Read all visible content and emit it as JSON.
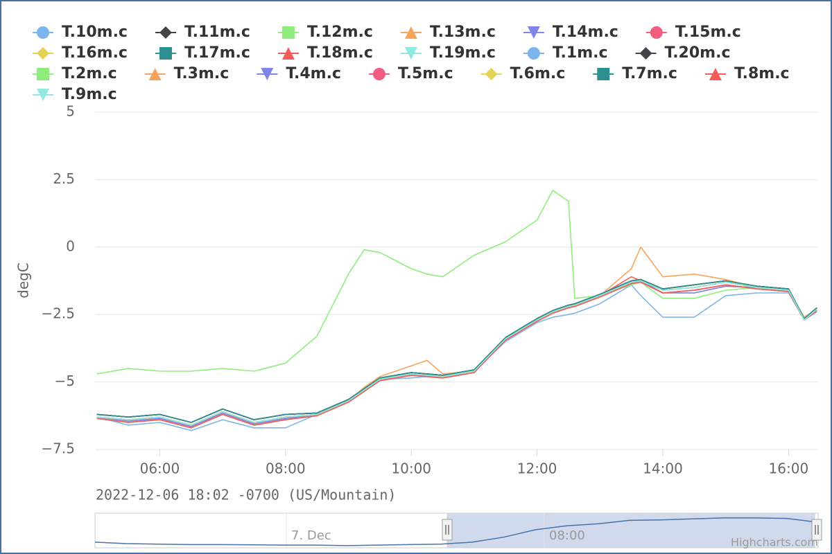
{
  "chart_data": {
    "type": "line",
    "subtitle": "2022-12-06 18:02 -0700 (US/Mountain)",
    "y_label": "degC",
    "x": [
      5,
      5.5,
      6,
      6.5,
      7,
      7.5,
      8,
      8.5,
      9,
      9.25,
      9.5,
      10,
      10.25,
      10.5,
      11,
      11.5,
      12,
      12.25,
      12.5,
      12.6,
      13,
      13.5,
      13.65,
      14,
      14.5,
      15,
      15.5,
      16,
      16.25,
      16.45
    ],
    "xlim": [
      4.97,
      16.47
    ],
    "xticks": [
      {
        "value": 6,
        "label": "06:00"
      },
      {
        "value": 8,
        "label": "08:00"
      },
      {
        "value": 10,
        "label": "10:00"
      },
      {
        "value": 12,
        "label": "12:00"
      },
      {
        "value": 14,
        "label": "14:00"
      },
      {
        "value": 16,
        "label": "16:00"
      }
    ],
    "ylim": [
      -7.5,
      5
    ],
    "yticks": [
      5,
      2.5,
      0,
      {
        "value": -2.5,
        "label": "−2.5"
      },
      {
        "value": -5,
        "label": "−5"
      },
      {
        "value": -7.5,
        "label": "−7.5"
      }
    ],
    "grid": true,
    "series": [
      {
        "name": "T.10m.c",
        "color": "#7cb5ec",
        "symbol": "circle",
        "values": [
          -6.3,
          -6.4,
          -6.3,
          -6.6,
          -6.1,
          -6.5,
          -6.3,
          -6.2,
          -5.7,
          -5.3,
          -4.9,
          -4.7,
          -4.75,
          -4.8,
          -4.6,
          -3.4,
          -2.7,
          -2.4,
          -2.2,
          -2.15,
          -1.8,
          -1.3,
          -1.25,
          -1.6,
          -1.5,
          -1.3,
          -1.5,
          -1.6,
          -2.7,
          -2.3
        ]
      },
      {
        "name": "T.11m.c",
        "color": "#434348",
        "symbol": "diamond",
        "values": [
          -6.2,
          -6.3,
          -6.2,
          -6.5,
          -6.0,
          -6.4,
          -6.2,
          -6.15,
          -5.65,
          -5.25,
          -4.85,
          -4.65,
          -4.7,
          -4.75,
          -4.55,
          -3.35,
          -2.65,
          -2.35,
          -2.15,
          -2.1,
          -1.75,
          -1.25,
          -1.2,
          -1.55,
          -1.4,
          -1.25,
          -1.45,
          -1.55,
          -2.65,
          -2.25
        ]
      },
      {
        "name": "T.12m.c",
        "color": "#90ed7d",
        "symbol": "square",
        "values": [
          -6.35,
          -6.5,
          -6.4,
          -6.7,
          -6.2,
          -6.6,
          -6.4,
          -6.25,
          -5.75,
          -5.35,
          -4.95,
          -4.75,
          -4.8,
          -4.85,
          -4.65,
          -3.45,
          -2.75,
          -2.45,
          -2.25,
          -2.2,
          -1.85,
          -1.35,
          -1.3,
          -1.7,
          -1.6,
          -1.4,
          -1.55,
          -1.65,
          -2.7,
          -2.35
        ]
      },
      {
        "name": "T.13m.c",
        "color": "#f7a35c",
        "symbol": "triangle",
        "values": [
          -6.3,
          -6.45,
          -6.35,
          -6.65,
          -6.15,
          -6.55,
          -6.35,
          -6.2,
          -5.7,
          -5.3,
          -4.9,
          -4.7,
          -4.75,
          -4.8,
          -4.6,
          -3.4,
          -2.7,
          -2.4,
          -2.2,
          -2.15,
          -1.8,
          -1.3,
          -1.25,
          -1.7,
          -1.7,
          -1.45,
          -1.5,
          -1.6,
          -2.7,
          -2.3
        ]
      },
      {
        "name": "T.14m.c",
        "color": "#8085e9",
        "symbol": "triangle-down",
        "values": [
          -6.3,
          -6.4,
          -6.3,
          -6.6,
          -6.1,
          -6.5,
          -6.3,
          -6.2,
          -5.7,
          -5.3,
          -4.9,
          -4.7,
          -4.75,
          -4.8,
          -4.6,
          -3.4,
          -2.7,
          -2.4,
          -2.2,
          -2.15,
          -1.8,
          -1.3,
          -1.25,
          -1.6,
          -1.5,
          -1.3,
          -1.5,
          -1.6,
          -2.7,
          -2.3
        ]
      },
      {
        "name": "T.15m.c",
        "color": "#f15c80",
        "symbol": "circle",
        "values": [
          -6.2,
          -6.3,
          -6.2,
          -6.5,
          -6.0,
          -6.4,
          -6.2,
          -6.15,
          -5.65,
          -5.25,
          -4.85,
          -4.65,
          -4.7,
          -4.75,
          -4.55,
          -3.35,
          -2.65,
          -2.35,
          -2.15,
          -2.1,
          -1.75,
          -1.25,
          -1.2,
          -1.55,
          -1.4,
          -1.25,
          -1.45,
          -1.55,
          -2.65,
          -2.25
        ]
      },
      {
        "name": "T.16m.c",
        "color": "#e4d354",
        "symbol": "diamond",
        "values": [
          -6.35,
          -6.5,
          -6.4,
          -6.7,
          -6.2,
          -6.6,
          -6.4,
          -6.25,
          -5.75,
          -5.35,
          -4.95,
          -4.75,
          -4.8,
          -4.85,
          -4.65,
          -3.45,
          -2.75,
          -2.45,
          -2.25,
          -2.2,
          -1.85,
          -1.35,
          -1.3,
          -1.7,
          -1.6,
          -1.4,
          -1.55,
          -1.65,
          -2.7,
          -2.35
        ]
      },
      {
        "name": "T.17m.c",
        "color": "#2b908f",
        "symbol": "square",
        "values": [
          -6.2,
          -6.3,
          -6.2,
          -6.5,
          -6.0,
          -6.4,
          -6.2,
          -6.15,
          -5.65,
          -5.25,
          -4.85,
          -4.65,
          -4.7,
          -4.75,
          -4.55,
          -3.35,
          -2.65,
          -2.35,
          -2.15,
          -2.1,
          -1.75,
          -1.25,
          -1.2,
          -1.55,
          -1.4,
          -1.25,
          -1.45,
          -1.55,
          -2.65,
          -2.25
        ]
      },
      {
        "name": "T.18m.c",
        "color": "#f45b5b",
        "symbol": "triangle",
        "values": [
          -6.3,
          -6.4,
          -6.3,
          -6.6,
          -6.1,
          -6.5,
          -6.3,
          -6.2,
          -5.7,
          -5.3,
          -4.9,
          -4.7,
          -4.75,
          -4.8,
          -4.6,
          -3.4,
          -2.7,
          -2.4,
          -2.2,
          -2.15,
          -1.8,
          -1.1,
          -1.25,
          -1.6,
          -1.5,
          -1.3,
          -1.5,
          -1.6,
          -2.7,
          -2.3
        ]
      },
      {
        "name": "T.19m.c",
        "color": "#91e8e1",
        "symbol": "triangle-down",
        "values": [
          -6.3,
          -6.45,
          -6.35,
          -6.65,
          -6.15,
          -6.55,
          -6.35,
          -6.2,
          -5.7,
          -5.3,
          -4.9,
          -4.7,
          -4.75,
          -4.8,
          -4.6,
          -3.4,
          -2.7,
          -2.4,
          -2.2,
          -2.15,
          -1.8,
          -1.3,
          -1.25,
          -1.7,
          -1.7,
          -1.45,
          -1.5,
          -1.6,
          -2.7,
          -2.3
        ]
      },
      {
        "name": "T.1m.c",
        "color": "#7cb5ec",
        "symbol": "circle",
        "values": [
          -6.3,
          -6.6,
          -6.5,
          -6.8,
          -6.4,
          -6.7,
          -6.7,
          -6.2,
          -5.7,
          -5.3,
          -4.9,
          -4.85,
          -4.8,
          -4.8,
          -4.6,
          -3.5,
          -2.8,
          -2.6,
          -2.5,
          -2.45,
          -2.1,
          -1.4,
          -1.8,
          -2.6,
          -2.6,
          -1.8,
          -1.7,
          -1.7,
          -2.7,
          -2.4
        ]
      },
      {
        "name": "T.20m.c",
        "color": "#434348",
        "symbol": "diamond",
        "values": [
          -6.2,
          -6.3,
          -6.2,
          -6.5,
          -6.0,
          -6.4,
          -6.2,
          -6.15,
          -5.65,
          -5.25,
          -4.85,
          -4.65,
          -4.7,
          -4.75,
          -4.55,
          -3.35,
          -2.65,
          -2.35,
          -2.15,
          -2.1,
          -1.75,
          -1.25,
          -1.2,
          -1.55,
          -1.4,
          -1.25,
          -1.45,
          -1.55,
          -2.65,
          -2.25
        ]
      },
      {
        "name": "T.2m.c",
        "color": "#90ed7d",
        "symbol": "square",
        "values": [
          -4.7,
          -4.5,
          -4.6,
          -4.6,
          -4.5,
          -4.6,
          -4.3,
          -3.3,
          -1.0,
          -0.1,
          -0.2,
          -0.8,
          -1.0,
          -1.1,
          -0.3,
          0.2,
          1.0,
          2.1,
          1.7,
          -1.9,
          -1.8,
          -1.4,
          -1.3,
          -1.9,
          -1.9,
          -1.6,
          -1.5,
          -1.6,
          -2.6,
          -2.3
        ]
      },
      {
        "name": "T.3m.c",
        "color": "#f7a35c",
        "symbol": "triangle",
        "values": [
          -6.3,
          -6.4,
          -6.3,
          -6.6,
          -6.1,
          -6.5,
          -6.3,
          -6.2,
          -5.7,
          -5.2,
          -4.8,
          -4.4,
          -4.2,
          -4.7,
          -4.6,
          -3.4,
          -2.7,
          -2.4,
          -2.2,
          -2.15,
          -1.8,
          -0.8,
          0.0,
          -1.1,
          -1.0,
          -1.2,
          -1.5,
          -1.6,
          -2.6,
          -2.3
        ]
      },
      {
        "name": "T.4m.c",
        "color": "#8085e9",
        "symbol": "triangle-down",
        "values": [
          -6.3,
          -6.45,
          -6.35,
          -6.65,
          -6.15,
          -6.55,
          -6.35,
          -6.2,
          -5.7,
          -5.3,
          -4.9,
          -4.7,
          -4.75,
          -4.8,
          -4.6,
          -3.4,
          -2.7,
          -2.4,
          -2.2,
          -2.15,
          -1.8,
          -1.3,
          -1.25,
          -1.7,
          -1.7,
          -1.45,
          -1.5,
          -1.6,
          -2.7,
          -2.3
        ]
      },
      {
        "name": "T.5m.c",
        "color": "#f15c80",
        "symbol": "circle",
        "values": [
          -6.35,
          -6.5,
          -6.4,
          -6.7,
          -6.2,
          -6.6,
          -6.4,
          -6.25,
          -5.75,
          -5.35,
          -4.95,
          -4.75,
          -4.8,
          -4.85,
          -4.65,
          -3.45,
          -2.75,
          -2.45,
          -2.25,
          -2.2,
          -1.85,
          -1.35,
          -1.3,
          -1.7,
          -1.6,
          -1.4,
          -1.55,
          -1.65,
          -2.7,
          -2.35
        ]
      },
      {
        "name": "T.6m.c",
        "color": "#e4d354",
        "symbol": "diamond",
        "values": [
          -6.3,
          -6.4,
          -6.3,
          -6.6,
          -6.1,
          -6.5,
          -6.3,
          -6.2,
          -5.7,
          -5.3,
          -4.9,
          -4.7,
          -4.75,
          -4.8,
          -4.6,
          -3.4,
          -2.7,
          -2.4,
          -2.2,
          -2.15,
          -1.8,
          -1.3,
          -1.25,
          -1.6,
          -1.5,
          -1.3,
          -1.5,
          -1.6,
          -2.7,
          -2.3
        ]
      },
      {
        "name": "T.7m.c",
        "color": "#2b908f",
        "symbol": "square",
        "values": [
          -6.2,
          -6.3,
          -6.2,
          -6.5,
          -6.0,
          -6.4,
          -6.2,
          -6.15,
          -5.65,
          -5.25,
          -4.85,
          -4.65,
          -4.7,
          -4.75,
          -4.55,
          -3.35,
          -2.65,
          -2.35,
          -2.15,
          -2.1,
          -1.75,
          -1.25,
          -1.2,
          -1.55,
          -1.4,
          -1.25,
          -1.45,
          -1.55,
          -2.65,
          -2.25
        ]
      },
      {
        "name": "T.8m.c",
        "color": "#f45b5b",
        "symbol": "triangle",
        "values": [
          -6.35,
          -6.5,
          -6.4,
          -6.7,
          -6.2,
          -6.6,
          -6.4,
          -6.25,
          -5.75,
          -5.35,
          -4.95,
          -4.75,
          -4.8,
          -4.85,
          -4.65,
          -3.45,
          -2.75,
          -2.45,
          -2.25,
          -2.2,
          -1.85,
          -1.35,
          -1.3,
          -1.7,
          -1.6,
          -1.4,
          -1.55,
          -1.65,
          -2.7,
          -2.35
        ]
      },
      {
        "name": "T.9m.c",
        "color": "#91e8e1",
        "symbol": "triangle-down",
        "values": [
          -6.3,
          -6.4,
          -6.3,
          -6.6,
          -6.1,
          -6.5,
          -6.3,
          -6.2,
          -5.7,
          -5.3,
          -4.9,
          -4.7,
          -4.75,
          -4.8,
          -4.6,
          -3.4,
          -2.7,
          -2.4,
          -2.2,
          -2.15,
          -1.8,
          -1.3,
          -1.25,
          -1.6,
          -1.5,
          -1.3,
          -1.5,
          -1.6,
          -2.7,
          -2.3
        ]
      }
    ],
    "navigator": {
      "labels": [
        "7. Dec",
        "08:00"
      ],
      "color": "#4572a7",
      "ylim": [
        -7.5,
        -1.2
      ],
      "values": [
        -6.5,
        -6.8,
        -6.9,
        -7,
        -7,
        -7.05,
        -7.1,
        -7.1,
        -7.2,
        -7.1,
        -7.0,
        -6.9,
        -6.5,
        -5.5,
        -4.0,
        -3.2,
        -2.8,
        -2.1,
        -2.0,
        -1.8,
        -1.6,
        -1.6,
        -1.7,
        -2.5
      ]
    },
    "credits": "Highcharts.com"
  }
}
